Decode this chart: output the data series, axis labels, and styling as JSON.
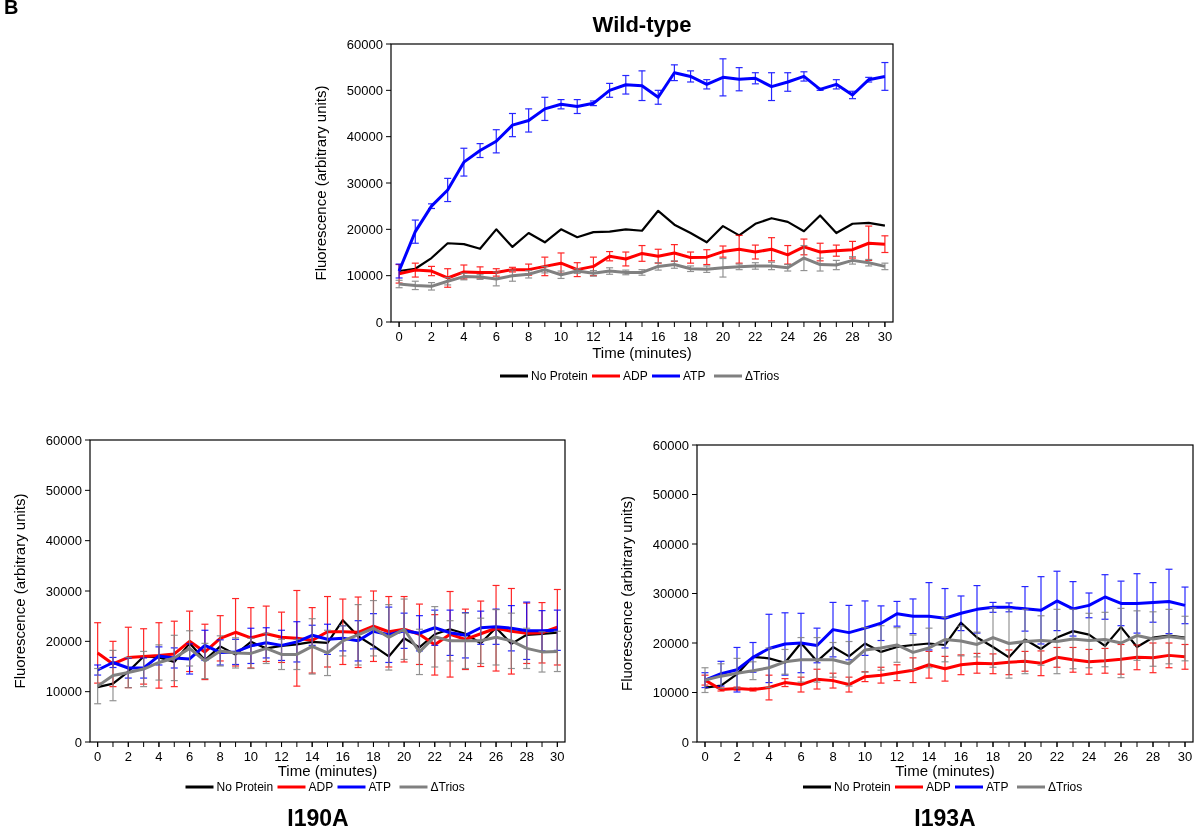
{
  "chart_data": [
    {
      "type": "line",
      "title": "Wild-type",
      "xlabel": "Time (minutes)",
      "ylabel": "Fluorescence (arbitrary units)",
      "annotations": [
        "B"
      ],
      "x": [
        0,
        1,
        2,
        3,
        4,
        5,
        6,
        7,
        8,
        9,
        10,
        11,
        12,
        13,
        14,
        15,
        16,
        17,
        18,
        19,
        20,
        21,
        22,
        23,
        24,
        25,
        26,
        27,
        28,
        29,
        30
      ],
      "xlim": [
        -0.5,
        30.5
      ],
      "xticks": [
        0,
        2,
        4,
        6,
        8,
        10,
        12,
        14,
        16,
        18,
        20,
        22,
        24,
        26,
        28,
        30
      ],
      "ylim": [
        0,
        60000
      ],
      "yticks": [
        0,
        10000,
        20000,
        30000,
        40000,
        50000,
        60000
      ],
      "legend": "bottom",
      "grid": false,
      "series": [
        {
          "name": "No Protein",
          "color": "#000000",
          "values": [
            11000,
            11500,
            13800,
            17000,
            16800,
            15800,
            20000,
            16200,
            19200,
            17200,
            20000,
            18300,
            19400,
            19500,
            20000,
            19700,
            24000,
            21000,
            19200,
            17200,
            20700,
            18700,
            21200,
            22400,
            21600,
            19600,
            23000,
            19200,
            21200,
            21400,
            20800
          ]
        },
        {
          "name": "ADP",
          "color": "#ff0000",
          "values": [
            10400,
            11200,
            11000,
            9500,
            10800,
            10700,
            10700,
            11300,
            11300,
            12000,
            12700,
            11300,
            12000,
            14200,
            13600,
            14800,
            14200,
            14900,
            13900,
            14000,
            15200,
            15700,
            15100,
            15700,
            14500,
            16200,
            15100,
            15400,
            15600,
            17000,
            16800
          ],
          "errors": [
            2000,
            1500,
            1000,
            2000,
            1500,
            1200,
            800,
            500,
            1200,
            2000,
            2200,
            1500,
            2000,
            1000,
            1500,
            1700,
            1500,
            1800,
            1200,
            1600,
            1200,
            3000,
            1500,
            2500,
            2000,
            1700,
            1900,
            1200,
            1800,
            3700,
            1800
          ]
        },
        {
          "name": "ATP",
          "color": "#0000ff",
          "values": [
            11000,
            19500,
            25000,
            28500,
            34500,
            37000,
            39000,
            42500,
            43500,
            46000,
            47000,
            46500,
            47200,
            50000,
            51200,
            51000,
            48500,
            53800,
            53000,
            51300,
            52800,
            52400,
            52600,
            50800,
            51800,
            53000,
            50200,
            51300,
            49000,
            52300,
            53000
          ],
          "errors": [
            1500,
            2500,
            500,
            2500,
            3000,
            1500,
            2500,
            2500,
            2500,
            2500,
            1000,
            1500,
            500,
            1500,
            2000,
            3200,
            1500,
            1700,
            1200,
            1000,
            4000,
            2500,
            1200,
            3000,
            2000,
            1000,
            200,
            1000,
            800,
            500,
            3000
          ]
        },
        {
          "name": "ΔTrios",
          "color": "#808080",
          "values": [
            8200,
            7900,
            7700,
            8800,
            9800,
            9700,
            9300,
            10000,
            10300,
            11300,
            10200,
            11000,
            10500,
            11000,
            10700,
            10700,
            12000,
            12400,
            11500,
            11400,
            11700,
            11900,
            12100,
            12100,
            11700,
            13800,
            12400,
            12300,
            13300,
            12800,
            12000
          ],
          "errors": [
            800,
            900,
            800,
            800,
            700,
            500,
            1500,
            1200,
            800,
            700,
            800,
            500,
            600,
            700,
            500,
            600,
            800,
            800,
            600,
            700,
            2000,
            600,
            700,
            800,
            700,
            2700,
            1400,
            1000,
            800,
            700,
            700
          ]
        }
      ]
    },
    {
      "type": "line",
      "title": "I190A",
      "xlabel": "Time (minutes)",
      "ylabel": "Fluorescence (arbitrary units)",
      "x": [
        0,
        1,
        2,
        3,
        4,
        5,
        6,
        7,
        8,
        9,
        10,
        11,
        12,
        13,
        14,
        15,
        16,
        17,
        18,
        19,
        20,
        21,
        22,
        23,
        24,
        25,
        26,
        27,
        28,
        29,
        30
      ],
      "xlim": [
        -0.5,
        30.5
      ],
      "xticks": [
        0,
        2,
        4,
        6,
        8,
        10,
        12,
        14,
        16,
        18,
        20,
        22,
        24,
        26,
        28,
        30
      ],
      "ylim": [
        0,
        60000
      ],
      "yticks": [
        0,
        10000,
        20000,
        30000,
        40000,
        50000,
        60000
      ],
      "legend": "bottom",
      "grid": false,
      "series": [
        {
          "name": "No Protein",
          "color": "#000000",
          "values": [
            10900,
            11600,
            14000,
            17000,
            16800,
            15900,
            19600,
            16300,
            19000,
            17400,
            19900,
            18600,
            19100,
            19400,
            19900,
            19700,
            24200,
            21000,
            19100,
            17000,
            20600,
            18800,
            21400,
            22400,
            21500,
            19600,
            22700,
            19500,
            21300,
            21500,
            21700
          ]
        },
        {
          "name": "ADP",
          "color": "#ff0000",
          "values": [
            17700,
            15500,
            16800,
            17000,
            17200,
            17500,
            20000,
            17900,
            20600,
            21800,
            20700,
            21500,
            20800,
            20600,
            20200,
            21900,
            21900,
            21800,
            23000,
            21900,
            22400,
            21400,
            19300,
            21400,
            20400,
            21500,
            22600,
            22000,
            21600,
            21700,
            22800
          ],
          "errors": [
            6000,
            4500,
            6000,
            5500,
            6500,
            6500,
            6000,
            5500,
            4500,
            6700,
            6000,
            5500,
            5000,
            9500,
            6500,
            7000,
            6500,
            7000,
            7000,
            7000,
            6500,
            6000,
            6000,
            8500,
            6000,
            6500,
            8500,
            8500,
            6000,
            6000,
            7500
          ]
        },
        {
          "name": "ATP",
          "color": "#0000ff",
          "values": [
            14300,
            15800,
            14700,
            14700,
            17100,
            16700,
            16500,
            19200,
            17800,
            17900,
            19100,
            19700,
            19200,
            19900,
            21200,
            20400,
            20600,
            20100,
            22000,
            21300,
            22100,
            21600,
            22700,
            21700,
            21200,
            22700,
            22900,
            22600,
            22100,
            22100,
            22200
          ],
          "errors": [
            1000,
            1000,
            2000,
            2000,
            1800,
            2000,
            3000,
            3000,
            2500,
            2500,
            3500,
            3000,
            3000,
            4000,
            2000,
            3000,
            2500,
            4000,
            3500,
            5500,
            3500,
            3500,
            3500,
            4500,
            4500,
            3300,
            3500,
            4500,
            5700,
            4000,
            4000
          ]
        },
        {
          "name": "ΔTrios",
          "color": "#808080",
          "values": [
            11100,
            13200,
            13800,
            14500,
            15800,
            16700,
            18600,
            16100,
            18100,
            17700,
            17600,
            18600,
            17400,
            17400,
            19000,
            17700,
            20100,
            21300,
            22600,
            20800,
            22400,
            17900,
            20900,
            20100,
            20100,
            20100,
            20800,
            20100,
            18600,
            17900,
            18000
          ],
          "errors": [
            3500,
            5000,
            3000,
            3500,
            3500,
            4500,
            3500,
            3500,
            3000,
            3000,
            3000,
            3000,
            3000,
            3000,
            5500,
            4500,
            3000,
            6000,
            5500,
            6500,
            6000,
            4500,
            6000,
            4000,
            5500,
            4500,
            5500,
            5500,
            4000,
            4000,
            4000
          ]
        }
      ]
    },
    {
      "type": "line",
      "title": "I193A",
      "xlabel": "Time (minutes)",
      "ylabel": "Fluorescence (arbitrary units)",
      "x": [
        0,
        1,
        2,
        3,
        4,
        5,
        6,
        7,
        8,
        9,
        10,
        11,
        12,
        13,
        14,
        15,
        16,
        17,
        18,
        19,
        20,
        21,
        22,
        23,
        24,
        25,
        26,
        27,
        28,
        29,
        30
      ],
      "xlim": [
        -0.5,
        30.5
      ],
      "xticks": [
        0,
        2,
        4,
        6,
        8,
        10,
        12,
        14,
        16,
        18,
        20,
        22,
        24,
        26,
        28,
        30
      ],
      "ylim": [
        0,
        60000
      ],
      "yticks": [
        0,
        10000,
        20000,
        30000,
        40000,
        50000,
        60000
      ],
      "legend": "bottom",
      "grid": false,
      "series": [
        {
          "name": "No Protein",
          "color": "#000000",
          "values": [
            11000,
            11400,
            13700,
            17200,
            16900,
            16000,
            20000,
            16300,
            19200,
            17300,
            19900,
            18200,
            19200,
            19600,
            19900,
            19600,
            24100,
            21100,
            19200,
            17100,
            20700,
            18800,
            21100,
            22400,
            21700,
            19400,
            23200,
            19200,
            21100,
            21500,
            21100
          ]
        },
        {
          "name": "ADP",
          "color": "#ff0000",
          "values": [
            12500,
            10600,
            10800,
            10600,
            11000,
            12000,
            11600,
            12700,
            12400,
            11600,
            13200,
            13500,
            14000,
            14500,
            15600,
            14800,
            15600,
            15900,
            15800,
            16100,
            16300,
            15900,
            17100,
            16600,
            16200,
            16400,
            16700,
            17100,
            17000,
            17500,
            17200
          ],
          "errors": [
            1000,
            300,
            300,
            300,
            2500,
            800,
            1500,
            2000,
            1500,
            1500,
            1000,
            1600,
            1600,
            2500,
            2700,
            2500,
            2000,
            2000,
            2000,
            2500,
            2000,
            2500,
            2000,
            2500,
            2500,
            2500,
            3000,
            2500,
            3000,
            2500,
            2500
          ]
        },
        {
          "name": "ATP",
          "color": "#0000ff",
          "values": [
            12500,
            13800,
            14600,
            17100,
            18900,
            19800,
            20000,
            19500,
            22700,
            22100,
            23000,
            24000,
            25900,
            25400,
            25400,
            25000,
            26000,
            26800,
            27200,
            27200,
            26900,
            26600,
            28500,
            26900,
            27600,
            29300,
            28000,
            28000,
            28200,
            28400,
            27600
          ],
          "errors": [
            1500,
            2500,
            4500,
            3000,
            6900,
            6300,
            6000,
            3500,
            5500,
            5500,
            5500,
            3500,
            2500,
            3500,
            6800,
            6000,
            3500,
            4800,
            1000,
            900,
            4500,
            6800,
            6000,
            5500,
            2500,
            4500,
            4500,
            6000,
            4000,
            6500,
            3700
          ]
        },
        {
          "name": "ΔTrios",
          "color": "#808080",
          "values": [
            12500,
            13300,
            13900,
            14400,
            15000,
            16200,
            16600,
            16600,
            16600,
            15800,
            18600,
            19000,
            19600,
            18100,
            19000,
            20700,
            20400,
            19700,
            21100,
            19900,
            20300,
            20500,
            20300,
            20800,
            20500,
            20700,
            20000,
            21500,
            20800,
            21300,
            20900
          ],
          "errors": [
            2500,
            2500,
            3000,
            1800,
            4000,
            2500,
            4500,
            4500,
            3500,
            4500,
            4500,
            4500,
            3500,
            3500,
            4000,
            4500,
            3000,
            2500,
            6000,
            7000,
            6500,
            5000,
            6500,
            6000,
            5500,
            5500,
            7000,
            5000,
            5500,
            5500,
            4500
          ]
        }
      ]
    }
  ]
}
